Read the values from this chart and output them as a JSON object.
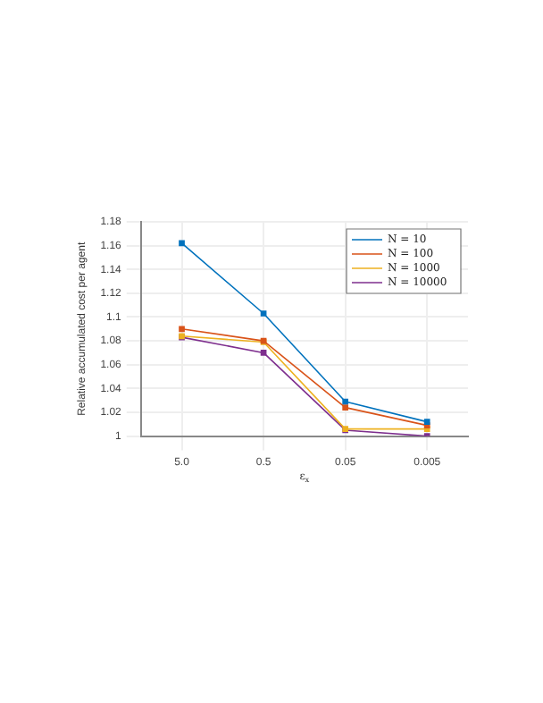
{
  "chart_data": {
    "type": "line",
    "xlabel": "ε$_{x}$",
    "ylabel": "Relative accumulated cost per agent",
    "categories": [
      "5.0",
      "0.5",
      "0.05",
      "0.005"
    ],
    "series": [
      {
        "name": "N = 10",
        "color": "#0072bd",
        "values": [
          1.162,
          1.103,
          1.029,
          1.012
        ]
      },
      {
        "name": "N = 100",
        "color": "#d95319",
        "values": [
          1.09,
          1.08,
          1.024,
          1.009
        ]
      },
      {
        "name": "N = 1000",
        "color": "#edb120",
        "values": [
          1.084,
          1.079,
          1.006,
          1.006
        ]
      },
      {
        "name": "N = 10000",
        "color": "#7e2f8e",
        "values": [
          1.083,
          1.07,
          1.005,
          1.0
        ]
      }
    ],
    "ylim": [
      1,
      1.18
    ],
    "yticks": [
      1,
      1.02,
      1.04,
      1.06,
      1.08,
      1.1,
      1.12,
      1.14,
      1.16,
      1.18
    ],
    "grid": true,
    "legend": "top right",
    "marker": "square",
    "line_style": "solid"
  }
}
